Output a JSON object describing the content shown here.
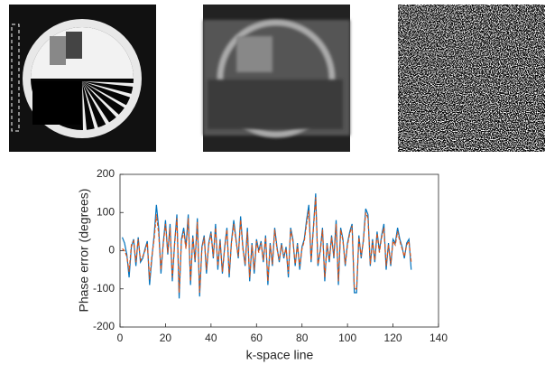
{
  "chart_data": {
    "type": "line",
    "xlabel": "k-space line",
    "ylabel": "Phase error (degrees)",
    "x": [
      1,
      2,
      3,
      4,
      5,
      6,
      7,
      8,
      9,
      10,
      11,
      12,
      13,
      14,
      15,
      16,
      17,
      18,
      19,
      20,
      21,
      22,
      23,
      24,
      25,
      26,
      27,
      28,
      29,
      30,
      31,
      32,
      33,
      34,
      35,
      36,
      37,
      38,
      39,
      40,
      41,
      42,
      43,
      44,
      45,
      46,
      47,
      48,
      49,
      50,
      51,
      52,
      53,
      54,
      55,
      56,
      57,
      58,
      59,
      60,
      61,
      62,
      63,
      64,
      65,
      66,
      67,
      68,
      69,
      70,
      71,
      72,
      73,
      74,
      75,
      76,
      77,
      78,
      79,
      80,
      81,
      82,
      83,
      84,
      85,
      86,
      87,
      88,
      89,
      90,
      91,
      92,
      93,
      94,
      95,
      96,
      97,
      98,
      99,
      100,
      101,
      102,
      103,
      104,
      105,
      106,
      107,
      108,
      109,
      110,
      111,
      112,
      113,
      114,
      115,
      116,
      117,
      118,
      119,
      120,
      121,
      122,
      123,
      124,
      125,
      126,
      127,
      128
    ],
    "series": [
      {
        "color": "#0072bd",
        "style": "solid",
        "values": [
          35,
          20,
          -10,
          -70,
          10,
          30,
          -40,
          35,
          -30,
          -20,
          5,
          25,
          -90,
          -20,
          40,
          120,
          60,
          -60,
          20,
          80,
          -10,
          70,
          -80,
          20,
          95,
          -125,
          30,
          60,
          10,
          95,
          -90,
          40,
          -30,
          85,
          -120,
          10,
          40,
          -60,
          20,
          50,
          -20,
          70,
          -50,
          30,
          -60,
          10,
          60,
          -70,
          25,
          80,
          30,
          -20,
          90,
          10,
          -40,
          60,
          -80,
          20,
          -60,
          30,
          0,
          25,
          -30,
          40,
          -90,
          20,
          -40,
          60,
          10,
          -30,
          20,
          -20,
          10,
          -70,
          60,
          30,
          -40,
          20,
          -50,
          10,
          30,
          80,
          120,
          -30,
          60,
          150,
          -40,
          0,
          60,
          -80,
          20,
          -30,
          40,
          -20,
          80,
          -90,
          60,
          30,
          -40,
          20,
          50,
          70,
          -110,
          -110,
          40,
          -20,
          30,
          110,
          95,
          -40,
          30,
          -30,
          50,
          0,
          40,
          70,
          -50,
          20,
          -40,
          30,
          20,
          60,
          30,
          10,
          -20,
          20,
          30,
          -50
        ]
      },
      {
        "color": "#d95319",
        "style": "dashed",
        "values": [
          5,
          0,
          -15,
          -55,
          15,
          25,
          -30,
          30,
          -25,
          -15,
          0,
          20,
          -75,
          -15,
          30,
          95,
          45,
          -50,
          15,
          70,
          -5,
          60,
          -70,
          15,
          85,
          -110,
          25,
          50,
          5,
          85,
          -80,
          35,
          -25,
          75,
          -110,
          5,
          35,
          -50,
          15,
          45,
          -15,
          60,
          -40,
          25,
          -55,
          5,
          55,
          -60,
          20,
          70,
          25,
          -15,
          80,
          5,
          -35,
          50,
          -70,
          15,
          -50,
          25,
          -5,
          20,
          -25,
          35,
          -80,
          15,
          -35,
          55,
          5,
          -25,
          15,
          -15,
          5,
          -60,
          55,
          25,
          -35,
          15,
          -40,
          5,
          25,
          70,
          105,
          -25,
          55,
          140,
          -35,
          -5,
          55,
          -70,
          15,
          -25,
          35,
          -15,
          70,
          -80,
          55,
          25,
          -35,
          15,
          45,
          65,
          -100,
          -100,
          35,
          -15,
          25,
          100,
          85,
          -35,
          25,
          -25,
          45,
          -5,
          35,
          60,
          -40,
          15,
          -35,
          25,
          15,
          50,
          25,
          5,
          -15,
          15,
          25,
          -30
        ]
      }
    ],
    "xlim": [
      0,
      140
    ],
    "xticks": [
      0,
      20,
      40,
      60,
      80,
      100,
      120,
      140
    ],
    "ylim": [
      -200,
      200
    ],
    "yticks": [
      -200,
      -100,
      0,
      100,
      200
    ]
  }
}
